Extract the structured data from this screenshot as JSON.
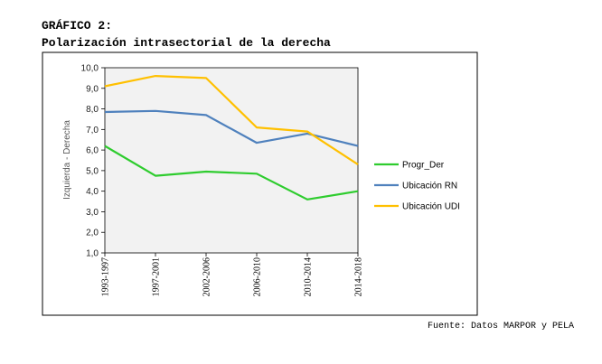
{
  "heading": {
    "line1": "GRÁFICO 2:",
    "line2": "Polarización intrasectorial de la derecha"
  },
  "source": "Fuente: Datos MARPOR y PELA",
  "chart_data": {
    "type": "line",
    "title": "",
    "xlabel": "",
    "ylabel": "Izquierda - Derecha",
    "categories": [
      "1993-1997",
      "1997-2001",
      "2002-2006",
      "2006-2010",
      "2010-2014",
      "2014-2018"
    ],
    "ylim": [
      1,
      10
    ],
    "yticks": [
      "1,0",
      "2,0",
      "3,0",
      "4,0",
      "5,0",
      "6,0",
      "7,0",
      "8,0",
      "9,0",
      "10,0"
    ],
    "grid": false,
    "plot_background": "#f2f2f2",
    "legend_position": "right",
    "series": [
      {
        "name": "Progr_Der",
        "color": "#2ecc2e",
        "values": [
          6.2,
          4.75,
          4.95,
          4.85,
          3.6,
          4.0
        ]
      },
      {
        "name": "Ubicación RN",
        "color": "#4f81bd",
        "values": [
          7.85,
          7.9,
          7.7,
          6.35,
          6.8,
          6.2
        ]
      },
      {
        "name": "Ubicación UDI",
        "color": "#ffc000",
        "values": [
          9.1,
          9.6,
          9.5,
          7.1,
          6.9,
          5.3
        ]
      }
    ]
  }
}
